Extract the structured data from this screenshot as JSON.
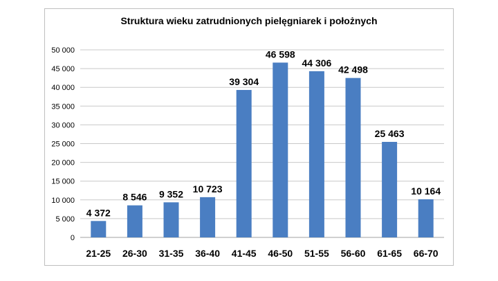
{
  "chart_data": {
    "type": "bar",
    "title": "Struktura wieku zatrudnionych pielęgniarek i położnych",
    "xlabel": "",
    "ylabel": "",
    "categories": [
      "21-25",
      "26-30",
      "31-35",
      "36-40",
      "41-45",
      "46-50",
      "51-55",
      "56-60",
      "61-65",
      "66-70"
    ],
    "values": [
      4372,
      8546,
      9352,
      10723,
      39304,
      46598,
      44306,
      42498,
      25463,
      10164
    ],
    "data_labels": [
      "4 372",
      "8 546",
      "9 352",
      "10 723",
      "39 304",
      "46 598",
      "44 306",
      "42 498",
      "25 463",
      "10 164"
    ],
    "ylim": [
      0,
      50000
    ],
    "y_ticks": [
      "0",
      "5 000",
      "10 000",
      "15 000",
      "20 000",
      "25 000",
      "30 000",
      "35 000",
      "40 000",
      "45 000",
      "50 000"
    ],
    "grid": true,
    "legend": "none",
    "bar_color": "#4a7ec2",
    "grid_color": "#c8c8c8"
  }
}
